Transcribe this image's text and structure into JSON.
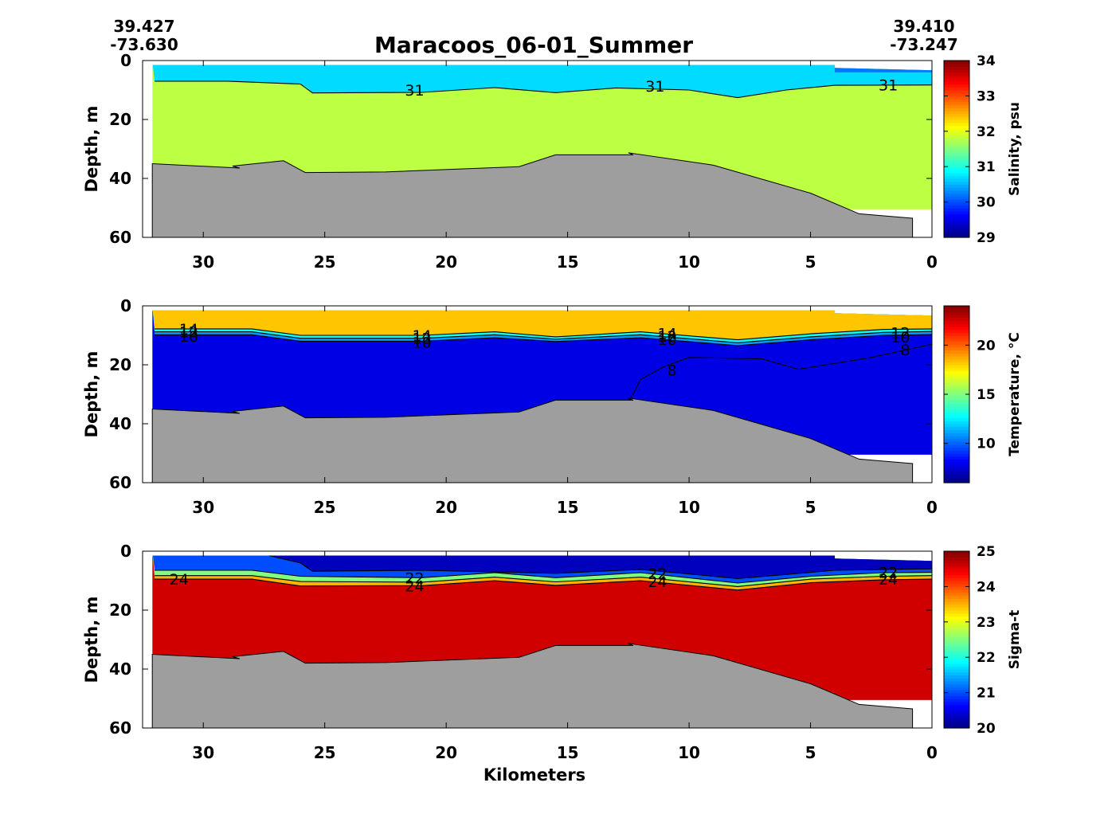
{
  "title": "Maracoos_06-01_Summer",
  "corners": {
    "left_lat": "39.427",
    "left_lon": "-73.630",
    "right_lat": "39.410",
    "right_lon": "-73.247"
  },
  "xlabel": "Kilometers",
  "chart_data": [
    {
      "type": "heatmap",
      "ylabel": "Depth, m",
      "colorbar_label": "Salinity, psu",
      "colorbar_ticks": [
        "29",
        "30",
        "31",
        "32",
        "33",
        "34"
      ],
      "x_ticks": [
        "30",
        "25",
        "20",
        "15",
        "10",
        "5",
        "0"
      ],
      "y_ticks": [
        "0",
        "20",
        "40",
        "60"
      ],
      "xlim": [
        32.5,
        0
      ],
      "ylim": [
        60,
        0
      ],
      "clim": [
        29,
        34
      ],
      "surface_layer": {
        "value": 30.7,
        "depth_to": 8
      },
      "bottom_layer_value": 31.8,
      "contours": [
        {
          "level": "31",
          "points": [
            [
              32,
              7
            ],
            [
              29,
              7
            ],
            [
              26,
              8
            ],
            [
              25.5,
              11
            ],
            [
              21,
              10.8
            ],
            [
              18,
              9.2
            ],
            [
              15.5,
              10.9
            ],
            [
              13,
              9.3
            ],
            [
              10,
              10
            ],
            [
              8,
              12.6
            ],
            [
              6,
              10
            ],
            [
              4,
              8.4
            ],
            [
              0,
              8.3
            ]
          ]
        }
      ],
      "contour_labels": [
        {
          "text": "31",
          "x": 21.3,
          "y": 10
        },
        {
          "text": "31",
          "x": 11.4,
          "y": 8.7
        },
        {
          "text": "31",
          "x": 1.8,
          "y": 8.2
        }
      ]
    },
    {
      "type": "heatmap",
      "ylabel": "Depth, m",
      "colorbar_label": "Temperature, °C",
      "colorbar_ticks": [
        "10",
        "15",
        "20"
      ],
      "x_ticks": [
        "30",
        "25",
        "20",
        "15",
        "10",
        "5",
        "0"
      ],
      "y_ticks": [
        "0",
        "20",
        "40",
        "60"
      ],
      "xlim": [
        32.5,
        0
      ],
      "ylim": [
        60,
        0
      ],
      "clim": [
        6,
        24
      ],
      "surface_layer": {
        "value": 22.5,
        "depth_to": 8
      },
      "bottom_layer_value": 7.8,
      "contours": [
        {
          "level": "14",
          "points": [
            [
              32,
              7.8
            ],
            [
              28,
              7.8
            ],
            [
              26,
              10
            ],
            [
              21,
              10
            ],
            [
              18,
              8.8
            ],
            [
              15.5,
              10.5
            ],
            [
              12,
              8.8
            ],
            [
              8,
              11.5
            ],
            [
              5,
              9.5
            ],
            [
              2,
              8
            ],
            [
              0,
              7.8
            ]
          ]
        },
        {
          "level": "12",
          "points": [
            [
              32,
              8.8
            ],
            [
              28,
              8.8
            ],
            [
              26,
              11
            ],
            [
              21,
              11
            ],
            [
              18,
              9.8
            ],
            [
              15.5,
              11.3
            ],
            [
              12,
              9.8
            ],
            [
              8,
              12.5
            ],
            [
              5,
              10.5
            ],
            [
              2,
              9
            ],
            [
              0,
              8.7
            ]
          ]
        },
        {
          "level": "10",
          "points": [
            [
              32,
              9.8
            ],
            [
              28,
              9.8
            ],
            [
              26,
              12
            ],
            [
              21,
              12
            ],
            [
              18,
              10.8
            ],
            [
              15.5,
              12.1
            ],
            [
              12,
              10.8
            ],
            [
              8,
              13.5
            ],
            [
              5,
              11.5
            ],
            [
              2,
              10
            ],
            [
              0,
              9.7
            ]
          ]
        },
        {
          "level": "8",
          "points": [
            [
              0,
              13
            ],
            [
              2.5,
              17.5
            ],
            [
              5.5,
              21.5
            ],
            [
              7,
              18
            ],
            [
              10,
              17.5
            ],
            [
              11,
              20.5
            ],
            [
              12,
              25
            ],
            [
              12.3,
              30
            ],
            [
              12.5,
              32
            ]
          ]
        }
      ],
      "contour_labels": [
        {
          "text": "14",
          "x": 30.6,
          "y": 7.8
        },
        {
          "text": "12",
          "x": 30.6,
          "y": 8.8
        },
        {
          "text": "10",
          "x": 30.6,
          "y": 10.3
        },
        {
          "text": "14",
          "x": 21.0,
          "y": 10.0
        },
        {
          "text": "12",
          "x": 21.0,
          "y": 11.0
        },
        {
          "text": "10",
          "x": 21.0,
          "y": 12.3
        },
        {
          "text": "14",
          "x": 10.9,
          "y": 9.3
        },
        {
          "text": "12",
          "x": 10.9,
          "y": 10.3
        },
        {
          "text": "10",
          "x": 10.9,
          "y": 11.3
        },
        {
          "text": "12",
          "x": 1.3,
          "y": 9.0
        },
        {
          "text": "10",
          "x": 1.3,
          "y": 10.5
        },
        {
          "text": "8",
          "x": 1.1,
          "y": 14.8
        },
        {
          "text": "8",
          "x": 10.7,
          "y": 21.7
        }
      ]
    },
    {
      "type": "heatmap",
      "ylabel": "Depth, m",
      "colorbar_label": "Sigma-t",
      "colorbar_ticks": [
        "20",
        "21",
        "22",
        "23",
        "24",
        "25"
      ],
      "x_ticks": [
        "30",
        "25",
        "20",
        "15",
        "10",
        "5",
        "0"
      ],
      "y_ticks": [
        "0",
        "20",
        "40",
        "60"
      ],
      "xlim": [
        32.5,
        0
      ],
      "ylim": [
        60,
        0
      ],
      "clim": [
        20,
        25
      ],
      "surface_layer": {
        "value": 20.6,
        "depth_to": 8
      },
      "bottom_layer_value": 24.6,
      "contours": [
        {
          "level": "20",
          "points": [
            [
              27.3,
              1.5
            ],
            [
              26,
              4
            ],
            [
              25.5,
              6.8
            ],
            [
              21,
              6.5
            ],
            [
              15.5,
              7.5
            ],
            [
              12,
              6.2
            ],
            [
              8,
              9.3
            ],
            [
              4,
              6.5
            ],
            [
              0,
              6
            ]
          ]
        },
        {
          "level": "22",
          "points": [
            [
              32,
              6.5
            ],
            [
              28,
              6.5
            ],
            [
              26,
              8.5
            ],
            [
              21,
              9
            ],
            [
              18,
              7.3
            ],
            [
              15.5,
              9
            ],
            [
              12,
              7.3
            ],
            [
              8,
              10.8
            ],
            [
              5,
              8.5
            ],
            [
              2,
              7.3
            ],
            [
              0,
              7.2
            ]
          ]
        },
        {
          "level": "23",
          "points": [
            [
              32,
              8.3
            ],
            [
              28,
              8.3
            ],
            [
              26,
              10.3
            ],
            [
              21,
              10.5
            ],
            [
              18,
              8.8
            ],
            [
              15.5,
              10.4
            ],
            [
              12,
              8.8
            ],
            [
              8,
              12
            ],
            [
              5,
              9.5
            ],
            [
              2,
              8.5
            ],
            [
              0,
              8.3
            ]
          ]
        },
        {
          "level": "24",
          "points": [
            [
              32,
              9.5
            ],
            [
              28,
              9.5
            ],
            [
              26,
              11.8
            ],
            [
              21,
              11.7
            ],
            [
              18,
              10
            ],
            [
              15.5,
              11.6
            ],
            [
              12,
              10
            ],
            [
              8,
              13.2
            ],
            [
              5,
              10.7
            ],
            [
              2,
              9.7
            ],
            [
              0,
              9.5
            ]
          ]
        }
      ],
      "contour_labels": [
        {
          "text": "24",
          "x": 31.0,
          "y": 9.5
        },
        {
          "text": "22",
          "x": 21.3,
          "y": 9.0
        },
        {
          "text": "24",
          "x": 21.3,
          "y": 11.7
        },
        {
          "text": "22",
          "x": 11.3,
          "y": 7.5
        },
        {
          "text": "24",
          "x": 11.3,
          "y": 10.3
        },
        {
          "text": "22",
          "x": 1.8,
          "y": 7.2
        },
        {
          "text": "24",
          "x": 1.8,
          "y": 9.5
        }
      ]
    }
  ],
  "bathymetry_km_depth": [
    [
      32.1,
      35
    ],
    [
      28.5,
      36.5
    ],
    [
      28.8,
      35.8
    ],
    [
      26.7,
      34
    ],
    [
      25.8,
      38
    ],
    [
      22.5,
      37.8
    ],
    [
      17,
      36
    ],
    [
      15.5,
      32
    ],
    [
      12.3,
      32
    ],
    [
      12.5,
      31.3
    ],
    [
      9,
      35.5
    ],
    [
      5,
      45
    ],
    [
      3,
      52
    ],
    [
      0.8,
      53.5
    ]
  ],
  "colors": {
    "bathymetry": "#9e9e9e",
    "salinity_surface": "#35b8f5",
    "salinity_bottom": "#c8f040",
    "temperature_surface": "#d71a10",
    "temperature_bottom": "#0a32e6",
    "sigma_surface": "#1b42f0",
    "sigma_bottom": "#b30d0d"
  }
}
